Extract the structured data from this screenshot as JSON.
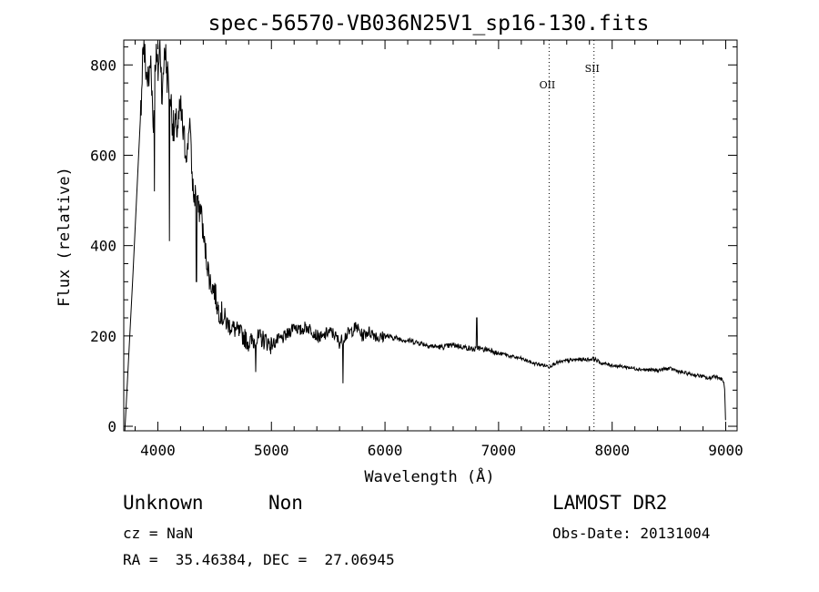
{
  "chart_data": {
    "type": "line",
    "title": "spec-56570-VB036N25V1_sp16-130.fits",
    "xlabel": "Wavelength (Å)",
    "ylabel": "Flux (relative)",
    "xlim": [
      3700,
      9100
    ],
    "ylim": [
      -10,
      855
    ],
    "x_ticks": [
      4000,
      5000,
      6000,
      7000,
      8000,
      9000
    ],
    "y_ticks": [
      0,
      200,
      400,
      600,
      800
    ],
    "line_markers": [
      {
        "name": "OII",
        "wavelength": 7445
      },
      {
        "name": "SII",
        "wavelength": 7840
      }
    ],
    "series": [
      {
        "x": [
          3710,
          3780,
          3850,
          3870,
          3900,
          3920,
          3940,
          3960,
          3980,
          4000,
          4020,
          4040,
          4060,
          4080,
          4100,
          4140,
          4180,
          4200,
          4230,
          4260,
          4280,
          4300,
          4320,
          4340,
          4360,
          4380,
          4400,
          4430,
          4460,
          4500,
          4530,
          4560,
          4600,
          4650,
          4700,
          4750,
          4800,
          4850,
          4900,
          4950,
          5000,
          5050,
          5100,
          5150,
          5200,
          5250,
          5300,
          5350,
          5400,
          5450,
          5500,
          5550,
          5600,
          5650,
          5700,
          5750,
          5800,
          5850,
          5900,
          5950,
          6000,
          6100,
          6200,
          6300,
          6400,
          6500,
          6600,
          6700,
          6780,
          6800,
          6820,
          6850,
          6900,
          6950,
          6980,
          7000,
          7050,
          7100,
          7200,
          7300,
          7400,
          7445,
          7500,
          7600,
          7700,
          7800,
          7840,
          7900,
          8000,
          8100,
          8200,
          8300,
          8400,
          8500,
          8550,
          8600,
          8700,
          8800,
          8850,
          8900,
          8950,
          8980,
          8990,
          9000
        ],
        "y": [
          -10,
          330,
          700,
          850,
          780,
          760,
          820,
          650,
          830,
          780,
          850,
          720,
          850,
          780,
          760,
          650,
          670,
          700,
          630,
          600,
          690,
          560,
          500,
          530,
          470,
          490,
          420,
          370,
          320,
          300,
          260,
          250,
          230,
          220,
          210,
          200,
          185,
          190,
          195,
          190,
          180,
          190,
          195,
          205,
          225,
          210,
          220,
          215,
          200,
          195,
          210,
          205,
          185,
          200,
          210,
          220,
          200,
          210,
          205,
          195,
          200,
          195,
          190,
          185,
          178,
          175,
          180,
          175,
          170,
          170,
          175,
          170,
          170,
          168,
          162,
          160,
          160,
          155,
          150,
          140,
          135,
          132,
          140,
          145,
          148,
          148,
          150,
          140,
          135,
          132,
          128,
          125,
          124,
          128,
          125,
          120,
          115,
          110,
          105,
          112,
          106,
          100,
          80,
          0
        ],
        "features": [
          {
            "x": 3970,
            "y": 520
          },
          {
            "x": 4103,
            "y": 410
          },
          {
            "x": 4340,
            "y": 320
          },
          {
            "x": 4862,
            "y": 120
          },
          {
            "x": 5630,
            "y": 95
          },
          {
            "x": 6808,
            "y": 240
          }
        ]
      }
    ]
  },
  "info": {
    "class": "Unknown",
    "subclass": "Non",
    "survey": "LAMOST DR2",
    "cz": "cz = NaN",
    "obs_date": "Obs-Date: 20131004",
    "radec": "RA =  35.46384, DEC =  27.06945"
  }
}
